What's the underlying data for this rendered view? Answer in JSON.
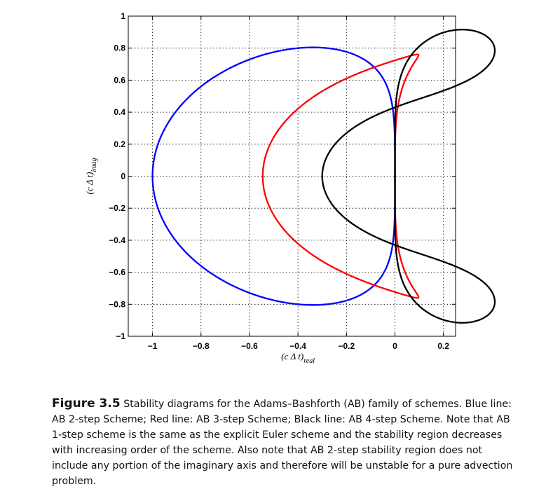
{
  "chart_data": {
    "type": "line",
    "xlabel": "(c Δ t)",
    "xlabel_sub": "real",
    "ylabel": "(c Δ t)",
    "ylabel_sub": "imag",
    "xlim": [
      -1.1,
      0.25
    ],
    "ylim": [
      -1,
      1
    ],
    "xticks": [
      -1,
      -0.8,
      -0.6,
      -0.4,
      -0.2,
      0,
      0.2
    ],
    "xtick_labels": [
      "−1",
      "−0.8",
      "−0.6",
      "−0.4",
      "−0.2",
      "0",
      "0.2"
    ],
    "yticks": [
      1,
      0.8,
      0.6,
      0.4,
      0.2,
      0,
      -0.2,
      -0.4,
      -0.6,
      -0.8,
      -1
    ],
    "ytick_labels": [
      "1",
      "0.8",
      "0.6",
      "0.4",
      "0.2",
      "0",
      "−0.2",
      "−0.4",
      "−0.6",
      "−0.8",
      "−1"
    ],
    "grid": true,
    "series": [
      {
        "scheme_steps": 2,
        "color": "#0000ff"
      },
      {
        "scheme_steps": 3,
        "color": "#ff0000"
      },
      {
        "scheme_steps": 4,
        "color": "#000000"
      }
    ]
  },
  "caption": {
    "label": "Figure 3.5",
    "text": "Stability diagrams for the Adams–Bashforth (AB) family of schemes. Blue line: AB 2-step Scheme; Red line: AB 3-step Scheme; Black line: AB 4-step Scheme. Note that AB 1-step scheme is the same as the explicit Euler scheme and the stability region decreases with increasing order of the scheme. Also note that AB 2-step stability region does not include any portion of the imaginary axis and therefore will be unstable for a pure advection problem."
  }
}
